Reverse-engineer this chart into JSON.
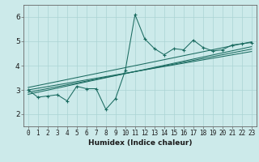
{
  "xlabel": "Humidex (Indice chaleur)",
  "bg_color": "#cceaea",
  "line_color": "#1a6b60",
  "data_x": [
    0,
    1,
    2,
    3,
    4,
    5,
    6,
    7,
    8,
    9,
    10,
    11,
    12,
    13,
    14,
    15,
    16,
    17,
    18,
    19,
    20,
    21,
    22,
    23
  ],
  "data_y": [
    3.0,
    2.7,
    2.75,
    2.8,
    2.55,
    3.15,
    3.05,
    3.05,
    2.2,
    2.65,
    3.8,
    6.1,
    5.1,
    4.7,
    4.45,
    4.7,
    4.65,
    5.05,
    4.75,
    4.6,
    4.65,
    4.85,
    4.9,
    4.95
  ],
  "ylim": [
    1.5,
    6.5
  ],
  "xlim": [
    -0.5,
    23.5
  ],
  "yticks": [
    2,
    3,
    4,
    5,
    6
  ],
  "xticks": [
    0,
    1,
    2,
    3,
    4,
    5,
    6,
    7,
    8,
    9,
    10,
    11,
    12,
    13,
    14,
    15,
    16,
    17,
    18,
    19,
    20,
    21,
    22,
    23
  ],
  "regression_lines": [
    {
      "x0": 0,
      "y0": 3.0,
      "x1": 23,
      "y1": 4.58
    },
    {
      "x0": 0,
      "y0": 2.9,
      "x1": 23,
      "y1": 4.68
    },
    {
      "x0": 0,
      "y0": 2.82,
      "x1": 23,
      "y1": 4.78
    },
    {
      "x0": 0,
      "y0": 3.1,
      "x1": 23,
      "y1": 4.98
    }
  ],
  "tick_fontsize": 5.5,
  "xlabel_fontsize": 6.5,
  "grid_color": "#aad4d4",
  "spine_color": "#666666"
}
